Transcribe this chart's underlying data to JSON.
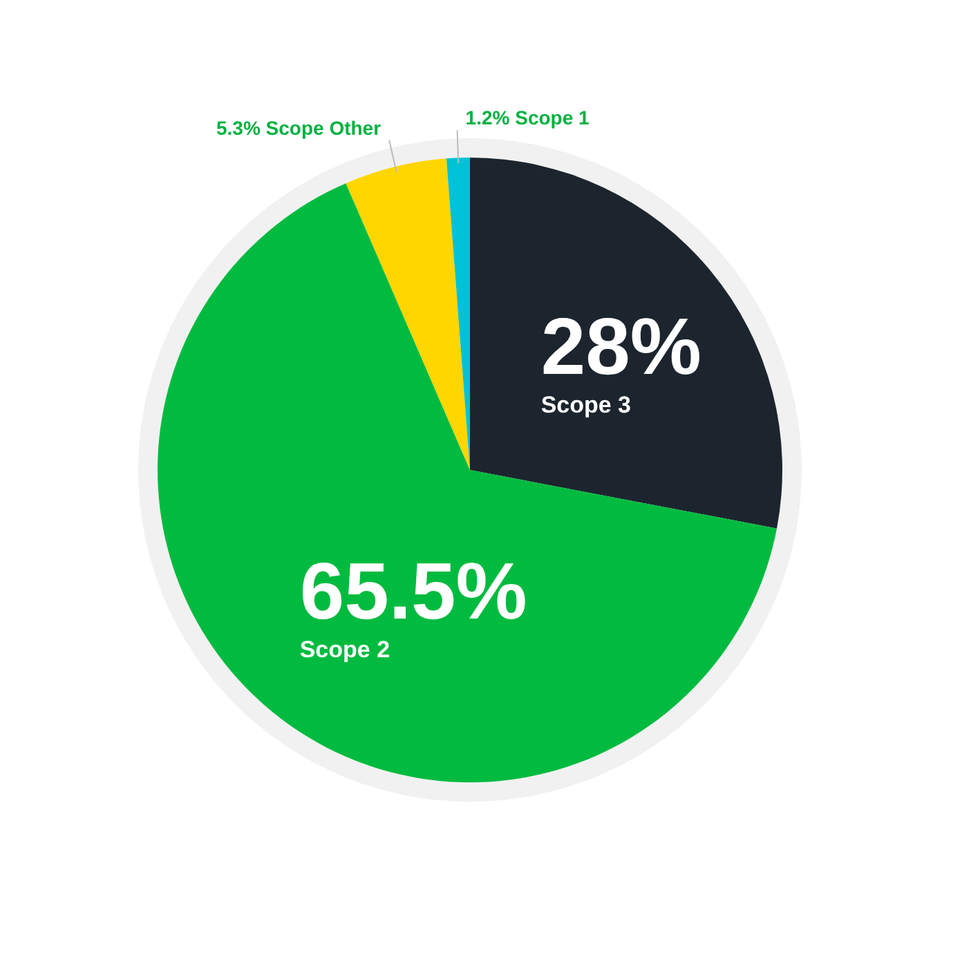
{
  "chart_data": {
    "type": "pie",
    "categories": [
      "Scope 3",
      "Scope 2",
      "Scope Other",
      "Scope 1"
    ],
    "values": [
      28,
      65.5,
      5.3,
      1.2
    ],
    "colors": [
      "#1c252e",
      "#00bb3f",
      "#ffd600",
      "#00c2d6"
    ],
    "value_labels": [
      "28%",
      "65.5%",
      "5.3%",
      "1.2%"
    ]
  }
}
